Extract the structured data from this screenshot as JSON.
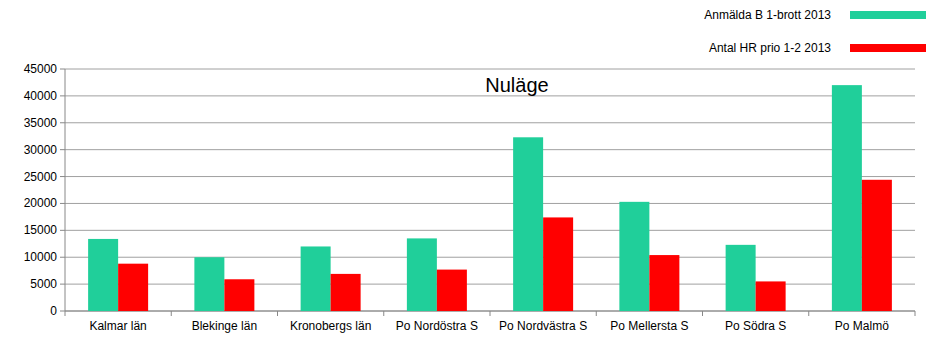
{
  "chart_data": {
    "type": "bar",
    "title": "Nuläge",
    "categories": [
      "Kalmar län",
      "Blekinge län",
      "Kronobergs län",
      "Po Nordöstra S",
      "Po Nordvästra S",
      "Po Mellersta S",
      "Po Södra S",
      "Po Malmö"
    ],
    "series": [
      {
        "name": "Anmälda B 1-brott 2013",
        "color": "#20cf9a",
        "values": [
          13400,
          10000,
          12000,
          13500,
          32300,
          20300,
          12300,
          42000
        ]
      },
      {
        "name": "Antal HR prio 1-2 2013",
        "color": "#ff0000",
        "values": [
          8800,
          5900,
          6900,
          7700,
          17400,
          10400,
          5500,
          24400
        ]
      }
    ],
    "ylim": [
      0,
      45000
    ],
    "yticks": [
      0,
      5000,
      10000,
      15000,
      20000,
      25000,
      30000,
      35000,
      40000,
      45000
    ],
    "grid": true,
    "legend": "top-right"
  }
}
